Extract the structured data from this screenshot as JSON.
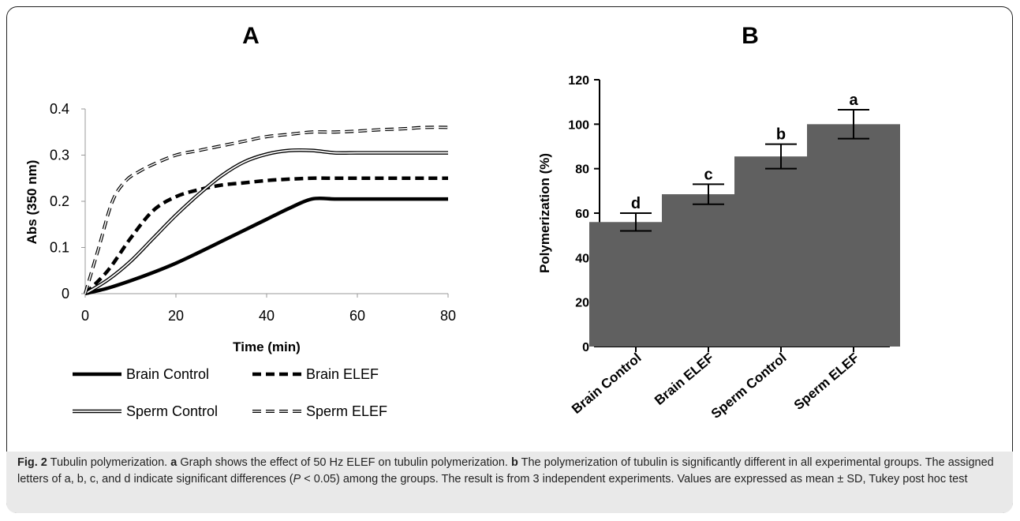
{
  "chart_data": [
    {
      "panel": "A",
      "type": "line",
      "title": "A",
      "xlabel": "Time (min)",
      "ylabel": "Abs (350 nm)",
      "xlim": [
        0,
        80
      ],
      "ylim": [
        0,
        0.4
      ],
      "xticks": [
        0,
        20,
        40,
        60,
        80
      ],
      "yticks": [
        0,
        0.1,
        0.2,
        0.3,
        0.4
      ],
      "ytick_labels": [
        "0",
        "0.1",
        "0.2",
        "0.3",
        "0.4"
      ],
      "legend_position": "bottom",
      "series": [
        {
          "name": "Brain Control",
          "style": "solid-thick",
          "x": [
            0,
            5,
            10,
            15,
            20,
            25,
            30,
            35,
            40,
            45,
            50,
            55,
            60,
            65,
            70,
            75,
            80
          ],
          "y": [
            0.0,
            0.012,
            0.028,
            0.046,
            0.066,
            0.089,
            0.113,
            0.137,
            0.161,
            0.185,
            0.205,
            0.205,
            0.205,
            0.205,
            0.205,
            0.205,
            0.205
          ]
        },
        {
          "name": "Brain ELEF",
          "style": "dashed-thick",
          "x": [
            0,
            5,
            10,
            15,
            20,
            25,
            30,
            35,
            40,
            45,
            50,
            55,
            60,
            65,
            70,
            75,
            80
          ],
          "y": [
            0.0,
            0.05,
            0.12,
            0.18,
            0.21,
            0.225,
            0.235,
            0.24,
            0.245,
            0.248,
            0.25,
            0.25,
            0.25,
            0.25,
            0.25,
            0.25,
            0.25
          ]
        },
        {
          "name": "Sperm Control",
          "style": "double-line",
          "x": [
            0,
            5,
            10,
            15,
            20,
            25,
            30,
            35,
            40,
            45,
            50,
            55,
            60,
            65,
            70,
            75,
            80
          ],
          "y": [
            0.0,
            0.03,
            0.07,
            0.12,
            0.17,
            0.215,
            0.255,
            0.285,
            0.302,
            0.31,
            0.31,
            0.305,
            0.305,
            0.305,
            0.305,
            0.305,
            0.305
          ]
        },
        {
          "name": "Sperm ELEF",
          "style": "double-dashed",
          "x": [
            0,
            3,
            6,
            9,
            12,
            15,
            20,
            25,
            30,
            35,
            40,
            45,
            50,
            55,
            60,
            65,
            70,
            75,
            80
          ],
          "y": [
            0.0,
            0.1,
            0.2,
            0.245,
            0.265,
            0.28,
            0.3,
            0.31,
            0.32,
            0.33,
            0.34,
            0.345,
            0.35,
            0.35,
            0.352,
            0.355,
            0.357,
            0.36,
            0.36
          ]
        }
      ]
    },
    {
      "panel": "B",
      "type": "bar",
      "title": "B",
      "xlabel": "",
      "ylabel": "Polymerization (%)",
      "ylim": [
        0,
        120
      ],
      "yticks": [
        0,
        20,
        40,
        60,
        80,
        100,
        120
      ],
      "categories": [
        "Brain Control",
        "Brain ELEF",
        "Sperm Control",
        "Sperm ELEF"
      ],
      "values": [
        56,
        68.5,
        85.5,
        100
      ],
      "errors": [
        4,
        4.5,
        5.5,
        6.5
      ],
      "significance": [
        "d",
        "c",
        "b",
        "a"
      ],
      "bar_color": "#606060"
    }
  ],
  "caption": {
    "label": "Fig. 2",
    "title": " Tubulin polymerization. ",
    "a": "a",
    "a_text": " Graph shows the effect of 50 Hz ELEF on tubulin polymerization. ",
    "b": "b",
    "b_text1": " The polymerization of tubulin is significantly different in all experimental groups. The assigned letters of a, b, c, and d indicate significant differences (",
    "p": "P",
    "b_text2": " < 0.05) among the groups. The result is from 3 independent experiments. Values are expressed as mean ± SD, Tukey post hoc test"
  }
}
